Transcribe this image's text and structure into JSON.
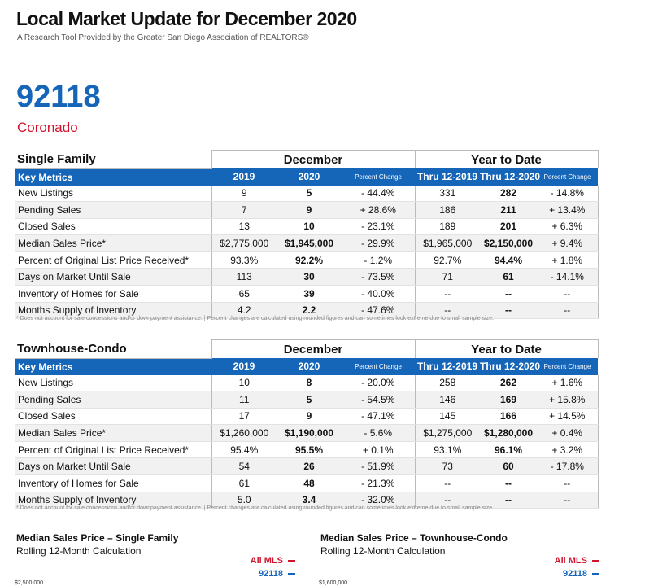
{
  "header": {
    "title": "Local Market Update for December 2020",
    "subtitle": "A Research Tool Provided by the Greater San Diego Association of REALTORS®"
  },
  "area": {
    "zip": "92118",
    "name": "Coronado"
  },
  "tables": [
    {
      "section": "Single Family",
      "groups": [
        "December",
        "Year to Date"
      ],
      "columns": [
        "Key Metrics",
        "2019",
        "2020",
        "Percent Change",
        "Thru 12-2019",
        "Thru 12-2020",
        "Percent Change"
      ],
      "rows": [
        [
          "New Listings",
          "9",
          "5",
          "- 44.4%",
          "331",
          "282",
          "- 14.8%"
        ],
        [
          "Pending Sales",
          "7",
          "9",
          "+ 28.6%",
          "186",
          "211",
          "+ 13.4%"
        ],
        [
          "Closed Sales",
          "13",
          "10",
          "- 23.1%",
          "189",
          "201",
          "+ 6.3%"
        ],
        [
          "Median Sales Price*",
          "$2,775,000",
          "$1,945,000",
          "- 29.9%",
          "$1,965,000",
          "$2,150,000",
          "+ 9.4%"
        ],
        [
          "Percent of Original List Price Received*",
          "93.3%",
          "92.2%",
          "- 1.2%",
          "92.7%",
          "94.4%",
          "+ 1.8%"
        ],
        [
          "Days on Market Until Sale",
          "113",
          "30",
          "- 73.5%",
          "71",
          "61",
          "- 14.1%"
        ],
        [
          "Inventory of Homes for Sale",
          "65",
          "39",
          "- 40.0%",
          "--",
          "--",
          "--"
        ],
        [
          "Months Supply of Inventory",
          "4.2",
          "2.2",
          "- 47.6%",
          "--",
          "--",
          "--"
        ]
      ],
      "footnote": "* Does not account for sale concessions and/or downpayment assistance. | Percent changes are calculated using rounded figures and can sometimes look extreme due to small sample size."
    },
    {
      "section": "Townhouse-Condo",
      "groups": [
        "December",
        "Year to Date"
      ],
      "columns": [
        "Key Metrics",
        "2019",
        "2020",
        "Percent Change",
        "Thru 12-2019",
        "Thru 12-2020",
        "Percent Change"
      ],
      "rows": [
        [
          "New Listings",
          "10",
          "8",
          "- 20.0%",
          "258",
          "262",
          "+ 1.6%"
        ],
        [
          "Pending Sales",
          "11",
          "5",
          "- 54.5%",
          "146",
          "169",
          "+ 15.8%"
        ],
        [
          "Closed Sales",
          "17",
          "9",
          "- 47.1%",
          "145",
          "166",
          "+ 14.5%"
        ],
        [
          "Median Sales Price*",
          "$1,260,000",
          "$1,190,000",
          "- 5.6%",
          "$1,275,000",
          "$1,280,000",
          "+ 0.4%"
        ],
        [
          "Percent of Original List Price Received*",
          "95.4%",
          "95.5%",
          "+ 0.1%",
          "93.1%",
          "96.1%",
          "+ 3.2%"
        ],
        [
          "Days on Market Until Sale",
          "54",
          "26",
          "- 51.9%",
          "73",
          "60",
          "- 17.8%"
        ],
        [
          "Inventory of Homes for Sale",
          "61",
          "48",
          "- 21.3%",
          "--",
          "--",
          "--"
        ],
        [
          "Months Supply of Inventory",
          "5.0",
          "3.4",
          "- 32.0%",
          "--",
          "--",
          "--"
        ]
      ],
      "footnote": "* Does not account for sale concessions and/or downpayment assistance. | Percent changes are calculated using rounded figures and can sometimes look extreme due to small sample size."
    }
  ],
  "charts": [
    {
      "title": "Median Sales Price – Single Family",
      "subtitle": "Rolling 12-Month Calculation",
      "legend": [
        "All MLS",
        "92118"
      ],
      "axis_top": "$2,500,000"
    },
    {
      "title": "Median Sales Price – Townhouse-Condo",
      "subtitle": "Rolling 12-Month Calculation",
      "legend": [
        "All MLS",
        "92118"
      ],
      "axis_top": "$1,600,000"
    }
  ]
}
